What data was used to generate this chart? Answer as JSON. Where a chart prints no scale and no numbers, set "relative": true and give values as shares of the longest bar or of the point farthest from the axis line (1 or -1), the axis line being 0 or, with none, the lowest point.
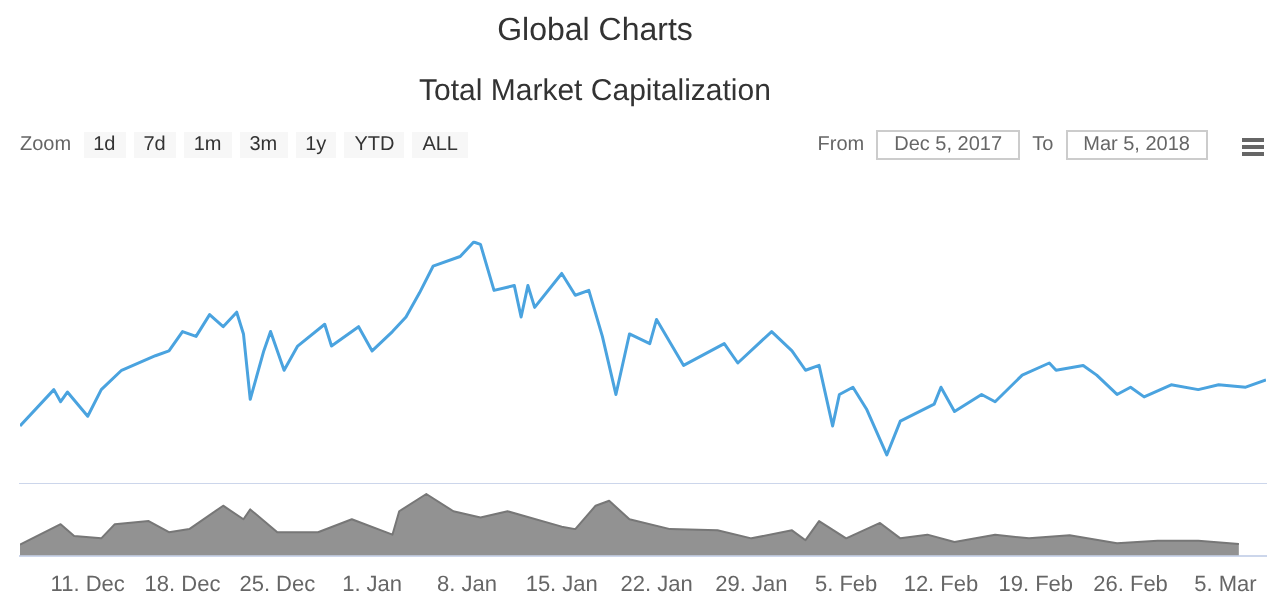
{
  "chart_data": [
    {
      "type": "line",
      "title": "Global Charts",
      "subtitle": "Total Market Capitalization",
      "relative": true,
      "tick_labels": false,
      "legend": false,
      "grid": false,
      "marker": "none",
      "annotations": [
        "Zoom",
        "1d",
        "7d",
        "1m",
        "3m",
        "1y",
        "YTD",
        "ALL",
        "From",
        "Dec 5, 2017",
        "To",
        "Mar 5, 2018"
      ],
      "xlim": [
        "2017-12-06",
        "2018-03-08"
      ],
      "x": [
        "2017-12-06",
        "2017-12-08T12:00",
        "2017-12-09",
        "2017-12-09T12:00",
        "2017-12-11",
        "2017-12-12",
        "2017-12-13T12:00",
        "2017-12-16",
        "2017-12-17",
        "2017-12-18",
        "2017-12-19",
        "2017-12-20",
        "2017-12-21",
        "2017-12-22",
        "2017-12-22T12:00",
        "2017-12-23",
        "2017-12-24",
        "2017-12-24T12:00",
        "2017-12-25T12:00",
        "2017-12-26T12:00",
        "2017-12-28T12:00",
        "2017-12-29",
        "2017-12-31",
        "2018-01-01",
        "2018-01-02T12:00",
        "2018-01-03T12:00",
        "2018-01-04T12:00",
        "2018-01-05T12:00",
        "2018-01-07T12:00",
        "2018-01-08T12:00",
        "2018-01-09",
        "2018-01-10",
        "2018-01-11T12:00",
        "2018-01-12",
        "2018-01-12T12:00",
        "2018-01-13",
        "2018-01-15",
        "2018-01-16",
        "2018-01-17",
        "2018-01-18",
        "2018-01-19",
        "2018-01-20",
        "2018-01-21T12:00",
        "2018-01-22",
        "2018-01-24",
        "2018-01-27",
        "2018-01-28",
        "2018-01-30T12:00",
        "2018-02-01",
        "2018-02-02",
        "2018-02-03",
        "2018-02-04",
        "2018-02-04T12:00",
        "2018-02-05T12:00",
        "2018-02-06T12:00",
        "2018-02-08",
        "2018-02-09",
        "2018-02-11T12:00",
        "2018-02-12",
        "2018-02-13",
        "2018-02-15",
        "2018-02-16",
        "2018-02-18",
        "2018-02-20",
        "2018-02-20T12:00",
        "2018-02-22T12:00",
        "2018-02-23T12:00",
        "2018-02-25",
        "2018-02-26",
        "2018-02-27",
        "2018-03-01",
        "2018-03-03",
        "2018-03-04T12:00",
        "2018-03-06T12:00",
        "2018-03-08"
      ],
      "series": [
        {
          "color": "#4aa3df",
          "values": [
            0.24,
            0.39,
            0.34,
            0.38,
            0.28,
            0.39,
            0.47,
            0.53,
            0.55,
            0.63,
            0.61,
            0.7,
            0.65,
            0.71,
            0.62,
            0.35,
            0.55,
            0.63,
            0.47,
            0.57,
            0.66,
            0.57,
            0.65,
            0.55,
            0.63,
            0.69,
            0.79,
            0.9,
            0.94,
            1,
            0.99,
            0.8,
            0.82,
            0.69,
            0.82,
            0.73,
            0.87,
            0.78,
            0.8,
            0.61,
            0.37,
            0.62,
            0.58,
            0.68,
            0.49,
            0.58,
            0.5,
            0.63,
            0.55,
            0.47,
            0.49,
            0.24,
            0.37,
            0.4,
            0.31,
            0.12,
            0.26,
            0.33,
            0.4,
            0.3,
            0.37,
            0.34,
            0.45,
            0.5,
            0.47,
            0.49,
            0.45,
            0.37,
            0.4,
            0.36,
            0.41,
            0.39,
            0.41,
            0.4,
            0.43
          ]
        }
      ]
    },
    {
      "type": "area",
      "relative": true,
      "tick_labels": "x",
      "legend": false,
      "grid": false,
      "xlim": [
        "2017-12-06",
        "2018-03-08"
      ],
      "xticks": [
        {
          "value": "2017-12-11",
          "label": "11. Dec"
        },
        {
          "value": "2017-12-18",
          "label": "18. Dec"
        },
        {
          "value": "2017-12-25",
          "label": "25. Dec"
        },
        {
          "value": "2018-01-01",
          "label": "1. Jan"
        },
        {
          "value": "2018-01-08",
          "label": "8. Jan"
        },
        {
          "value": "2018-01-15",
          "label": "15. Jan"
        },
        {
          "value": "2018-01-22",
          "label": "22. Jan"
        },
        {
          "value": "2018-01-29",
          "label": "29. Jan"
        },
        {
          "value": "2018-02-05",
          "label": "5. Feb"
        },
        {
          "value": "2018-02-12",
          "label": "12. Feb"
        },
        {
          "value": "2018-02-19",
          "label": "19. Feb"
        },
        {
          "value": "2018-02-26",
          "label": "26. Feb"
        },
        {
          "value": "2018-03-05",
          "label": "5. Mar"
        }
      ],
      "x": [
        "2017-12-06",
        "2017-12-09",
        "2017-12-10",
        "2017-12-12",
        "2017-12-13",
        "2017-12-15T12:00",
        "2017-12-17",
        "2017-12-18T12:00",
        "2017-12-21",
        "2017-12-22T12:00",
        "2017-12-23",
        "2017-12-25",
        "2017-12-28",
        "2017-12-30T12:00",
        "2018-01-02T12:00",
        "2018-01-03",
        "2018-01-05",
        "2018-01-07",
        "2018-01-09",
        "2018-01-11",
        "2018-01-15",
        "2018-01-16",
        "2018-01-17T12:00",
        "2018-01-18T12:00",
        "2018-01-20",
        "2018-01-23",
        "2018-01-26T12:00",
        "2018-01-29",
        "2018-02-01",
        "2018-02-02",
        "2018-02-03",
        "2018-02-05",
        "2018-02-07T12:00",
        "2018-02-09",
        "2018-02-11",
        "2018-02-13",
        "2018-02-16",
        "2018-02-18T12:00",
        "2018-02-21T12:00",
        "2018-02-25",
        "2018-02-28",
        "2018-03-03",
        "2018-03-06"
      ],
      "series": [
        {
          "color": "#777777",
          "values": [
            0.18,
            0.51,
            0.32,
            0.28,
            0.51,
            0.56,
            0.38,
            0.43,
            0.81,
            0.59,
            0.75,
            0.38,
            0.38,
            0.59,
            0.34,
            0.72,
            1,
            0.72,
            0.62,
            0.72,
            0.47,
            0.43,
            0.81,
            0.89,
            0.59,
            0.43,
            0.41,
            0.28,
            0.41,
            0.25,
            0.56,
            0.28,
            0.53,
            0.28,
            0.34,
            0.22,
            0.34,
            0.28,
            0.33,
            0.2,
            0.24,
            0.24,
            0.19
          ]
        }
      ]
    }
  ]
}
